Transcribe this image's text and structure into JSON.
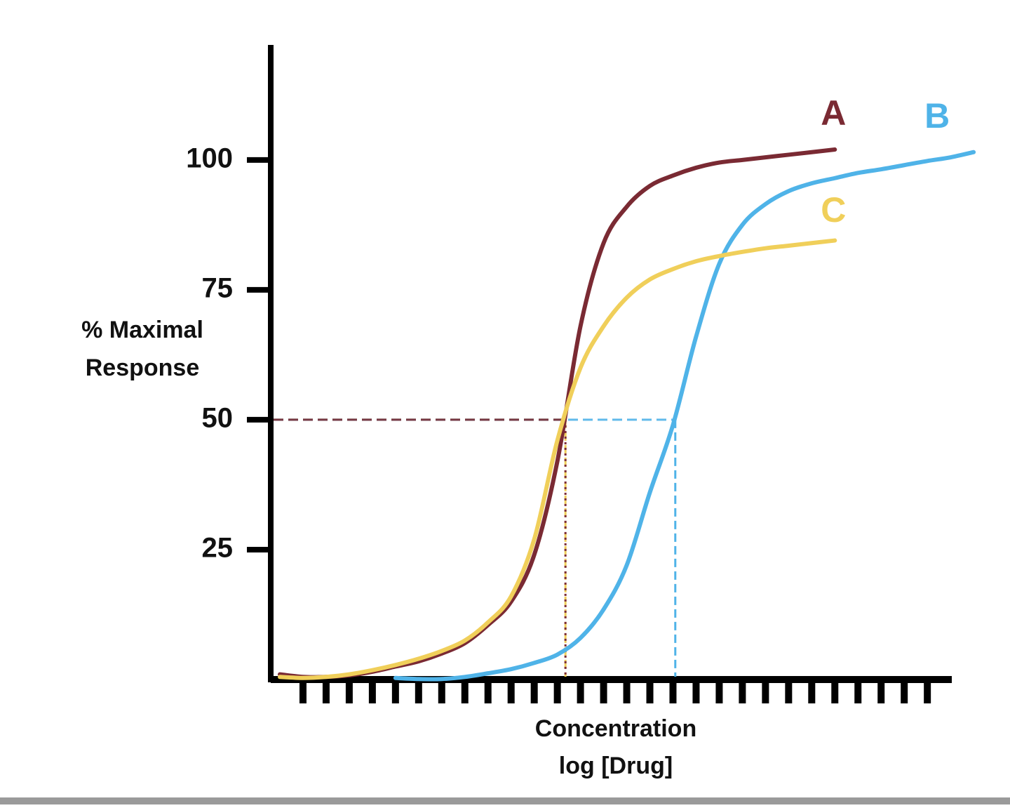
{
  "chart_data": {
    "type": "line",
    "ylabel": [
      "% Maximal",
      "Response"
    ],
    "xlabel": [
      "Concentration",
      "log [Drug]"
    ],
    "x": [
      0,
      1,
      2,
      3,
      4,
      5,
      6,
      7,
      8,
      9,
      10,
      11,
      12,
      13,
      14,
      15,
      16,
      17,
      18,
      19,
      20,
      21,
      22,
      23,
      24,
      25,
      26,
      27,
      28,
      29,
      30
    ],
    "series": [
      {
        "name": "A",
        "color": "#7a2a33",
        "ec50": 12.35,
        "values": [
          1,
          0.5,
          0.5,
          0.8,
          1.5,
          2.5,
          3.5,
          5,
          7,
          10.5,
          15,
          24,
          42,
          68,
          84,
          91,
          95,
          97,
          98.5,
          99.5,
          100,
          100.5,
          101,
          101.5,
          102,
          null,
          null,
          null,
          null,
          null,
          null
        ]
      },
      {
        "name": "B",
        "color": "#4fb3e8",
        "ec50": 17.1,
        "values": [
          null,
          null,
          null,
          null,
          null,
          0.3,
          0.1,
          0.1,
          0.5,
          1.2,
          2,
          3.2,
          4.8,
          8,
          13.5,
          22,
          36,
          49,
          66,
          80,
          87.5,
          91.5,
          94,
          95.5,
          96.5,
          97.5,
          98.2,
          99,
          99.8,
          100.5,
          101.5
        ]
      },
      {
        "name": "C",
        "color": "#f0cf5a",
        "ec50": 12.35,
        "values": [
          0.5,
          0.3,
          0.5,
          1,
          1.8,
          2.8,
          4,
          5.5,
          7.5,
          11,
          16,
          27,
          46,
          60,
          68,
          73.5,
          77,
          79,
          80.5,
          81.5,
          82.3,
          83,
          83.5,
          84,
          84.5,
          null,
          null,
          null,
          null,
          null,
          null
        ]
      }
    ],
    "ec50_level": 50,
    "xlim": [
      0,
      30
    ],
    "xticks": [
      1,
      2,
      3,
      4,
      5,
      6,
      7,
      8,
      9,
      10,
      11,
      12,
      13,
      14,
      15,
      16,
      17,
      18,
      19,
      20,
      21,
      22,
      23,
      24,
      25,
      26,
      27,
      28
    ],
    "ylim": [
      0,
      122
    ],
    "yticks": [
      25,
      50,
      75,
      100
    ]
  }
}
